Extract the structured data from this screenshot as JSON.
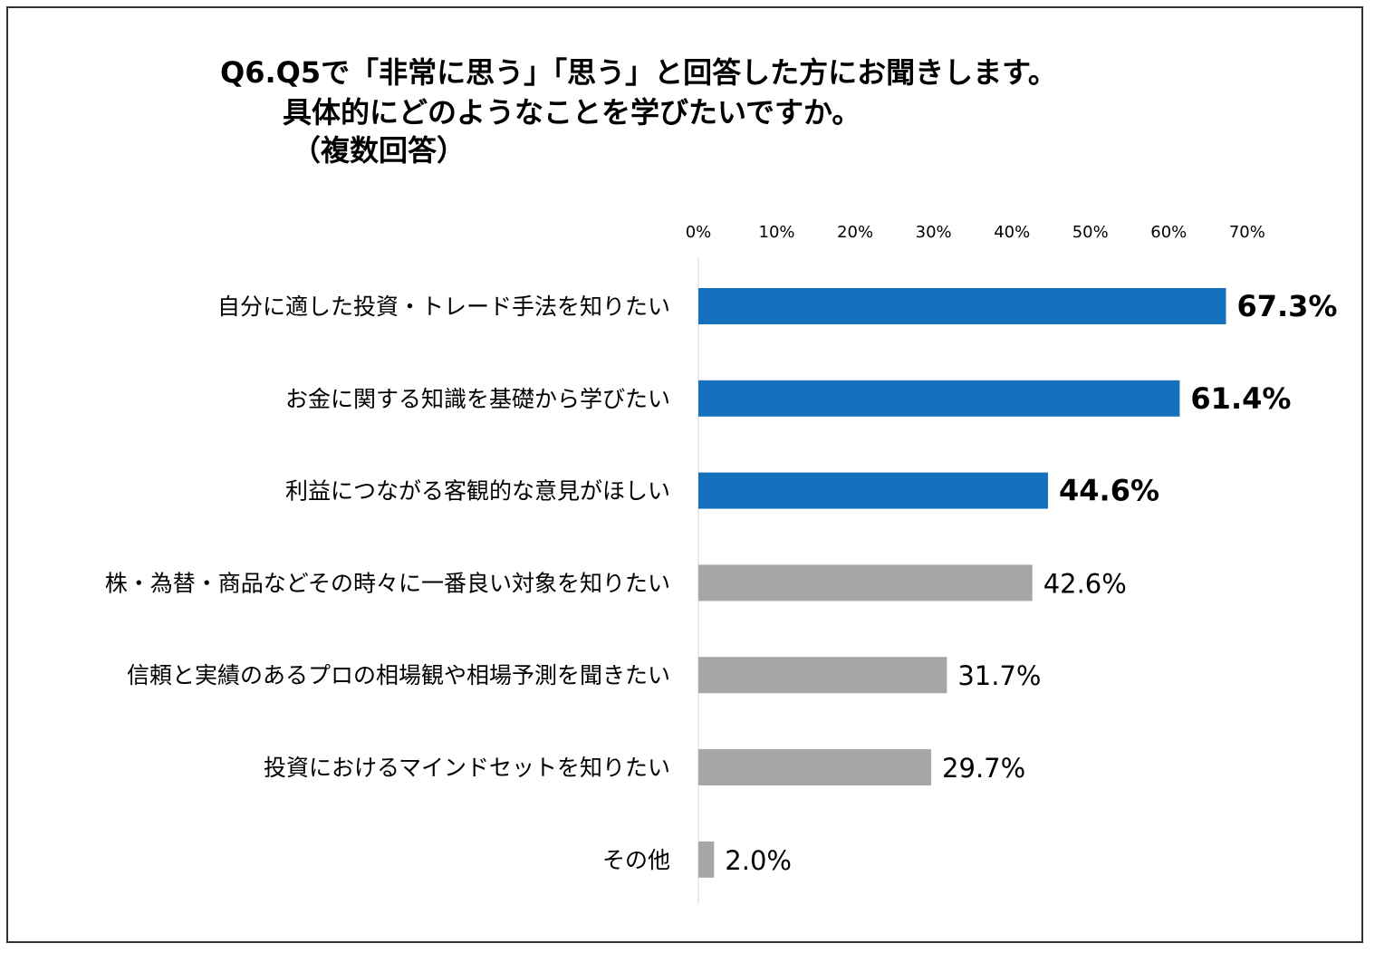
{
  "chart_data": {
    "type": "bar",
    "orientation": "horizontal",
    "title_lines": [
      "Q6.Q5で「非常に思う」「思う」と回答した方にお聞きします。",
      "具体的にどのようなことを学びたいですか。",
      "（複数回答）"
    ],
    "categories": [
      "自分に適した投資・トレード手法を知りたい",
      "お金に関する知識を基礎から学びたい",
      "利益につながる客観的な意見がほしい",
      "株・為替・商品などその時々に一番良い対象を知りたい",
      "信頼と実績のあるプロの相場観や相場予測を聞きたい",
      "投資におけるマインドセットを知りたい",
      "その他"
    ],
    "values": [
      67.3,
      61.4,
      44.6,
      42.6,
      31.7,
      29.7,
      2.0
    ],
    "value_labels": [
      "67.3%",
      "61.4%",
      "44.6%",
      "42.6%",
      "31.7%",
      "29.7%",
      "2.0%"
    ],
    "highlighted": [
      true,
      true,
      true,
      false,
      false,
      false,
      false
    ],
    "x_ticks": [
      "0%",
      "10%",
      "20%",
      "30%",
      "40%",
      "50%",
      "60%",
      "70%"
    ],
    "xlim": [
      0,
      70
    ],
    "grid": false,
    "colors": {
      "highlight": "#1570BE",
      "normal": "#A6A6A6",
      "axis": "#D9D9D9"
    }
  }
}
